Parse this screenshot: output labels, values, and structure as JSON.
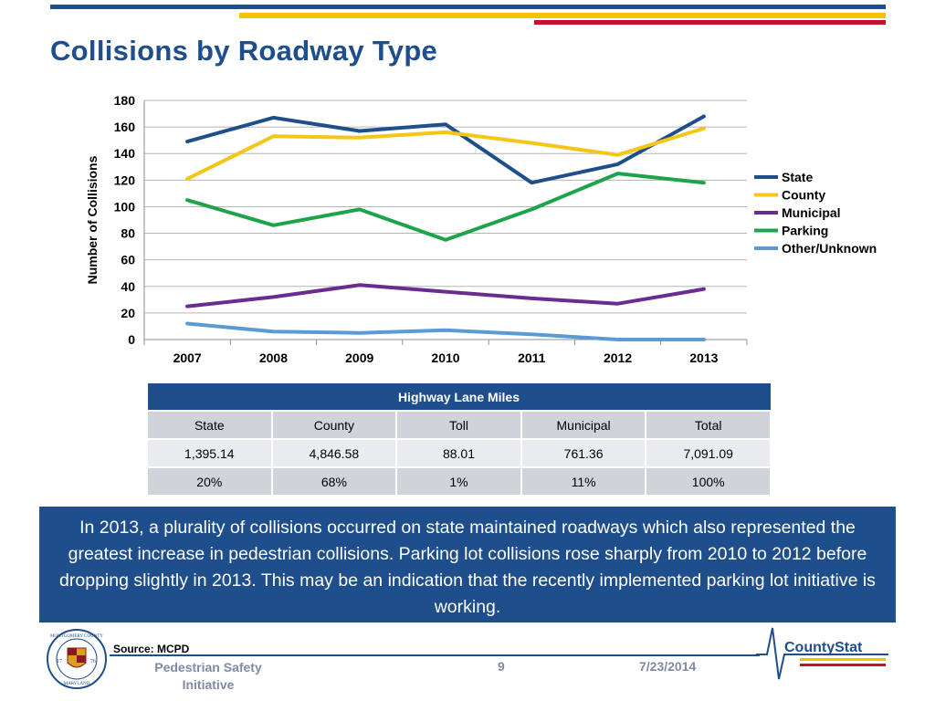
{
  "page": {
    "title": "Collisions by Roadway Type"
  },
  "colors": {
    "brand_navy": "#1f4e8c",
    "brand_yellow": "#f2c500",
    "brand_red": "#c8102e"
  },
  "chart_data": {
    "type": "line",
    "title": "",
    "categories": [
      "2007",
      "2008",
      "2009",
      "2010",
      "2011",
      "2012",
      "2013"
    ],
    "series": [
      {
        "name": "State",
        "color": "#1f4e8c",
        "values": [
          149,
          167,
          157,
          162,
          118,
          132,
          168
        ]
      },
      {
        "name": "County",
        "color": "#f5c518",
        "values": [
          121,
          153,
          152,
          156,
          148,
          139,
          159
        ]
      },
      {
        "name": "Municipal",
        "color": "#6a2c91",
        "values": [
          25,
          32,
          41,
          36,
          31,
          27,
          38
        ]
      },
      {
        "name": "Parking",
        "color": "#1fa34a",
        "values": [
          105,
          86,
          98,
          75,
          98,
          125,
          118
        ]
      },
      {
        "name": "Other/Unknown",
        "color": "#5b9bd5",
        "values": [
          12,
          6,
          5,
          7,
          4,
          0,
          0
        ]
      }
    ],
    "xlabel": "",
    "ylabel": "Number of Collisions",
    "ylim": [
      0,
      180
    ],
    "yticks": [
      "0",
      "20",
      "40",
      "60",
      "80",
      "100",
      "120",
      "140",
      "160",
      "180"
    ],
    "grid": true,
    "legend_position": "right"
  },
  "lane_table": {
    "title": "Highway Lane Miles",
    "columns": [
      "State",
      "County",
      "Toll",
      "Municipal",
      "Total"
    ],
    "miles": [
      "1,395.14",
      "4,846.58",
      "88.01",
      "761.36",
      "7,091.09"
    ],
    "percents": [
      "20%",
      "68%",
      "1%",
      "11%",
      "100%"
    ]
  },
  "callout": {
    "text": "In 2013, a plurality of collisions occurred on state maintained roadways which also represented the greatest increase in pedestrian collisions.  Parking lot collisions rose sharply from 2010 to 2012 before dropping slightly in 2013.  This may be an indication that the recently implemented parking lot initiative is working."
  },
  "footer": {
    "source": "Source: MCPD",
    "subject_line1": "Pedestrian Safety",
    "subject_line2": "Initiative",
    "page_number": "9",
    "date": "7/23/2014",
    "logo_text": "CountyStat",
    "seal_top": "MONTGOMERY COUNTY",
    "seal_bottom": "MARYLAND",
    "seal_left": "17",
    "seal_right": "76"
  }
}
